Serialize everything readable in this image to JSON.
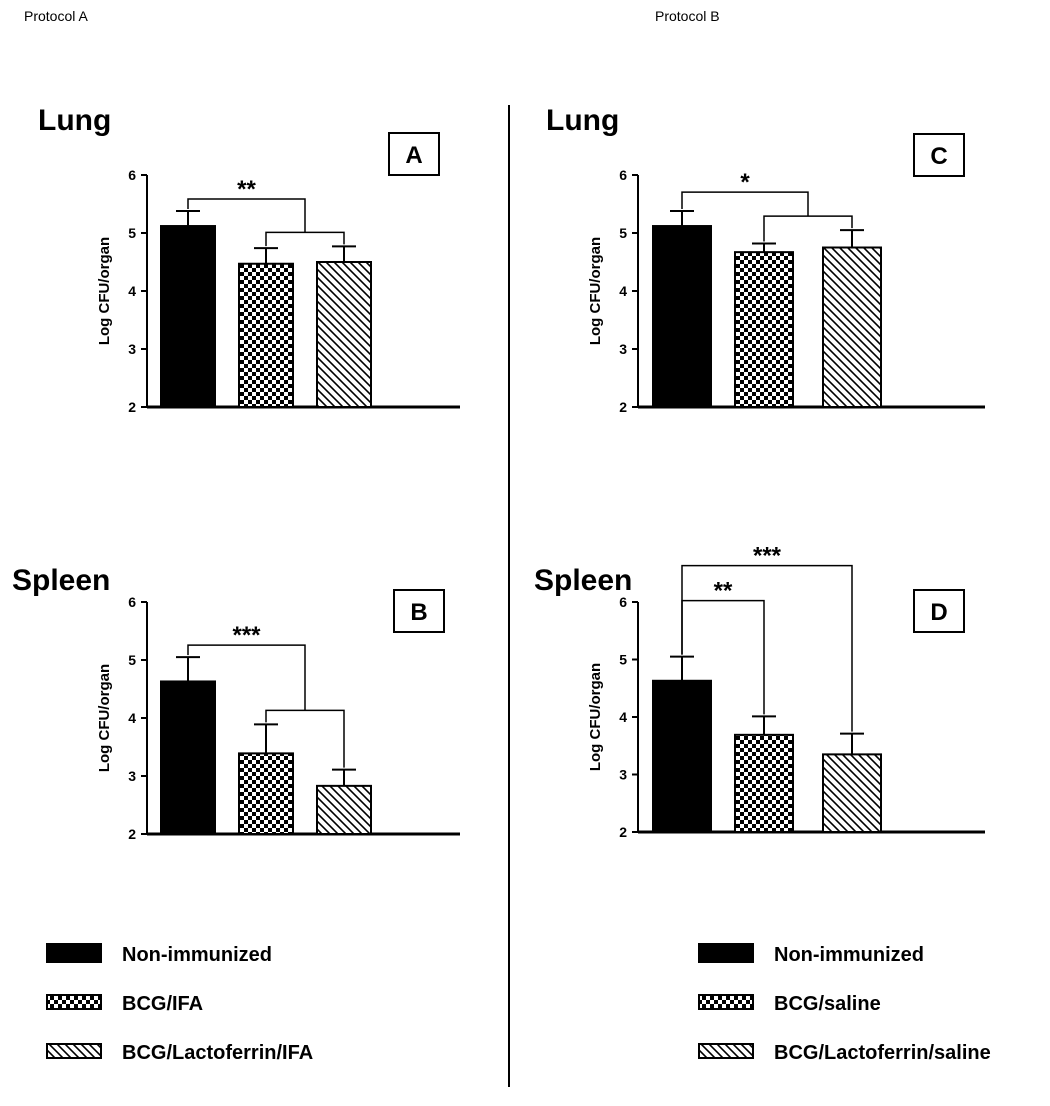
{
  "header": {
    "protocol_a": "Protocol A",
    "protocol_b": "Protocol B"
  },
  "colors": {
    "bar_solid": "#000000",
    "axis": "#000000",
    "background": "#ffffff"
  },
  "chart_data": [
    {
      "panel": "A",
      "type": "bar",
      "title": "Lung",
      "ylabel": "Log CFU/organ",
      "ylim": [
        2,
        6
      ],
      "yticks": [
        2,
        3,
        4,
        5,
        6
      ],
      "categories": [
        "Non-immunized",
        "BCG/IFA",
        "BCG/Lactoferrin/IFA"
      ],
      "patterns": [
        "solid",
        "checker",
        "hatch"
      ],
      "values": [
        5.12,
        4.47,
        4.5
      ],
      "errors": [
        0.26,
        0.27,
        0.27
      ],
      "significance": [
        {
          "label": "**",
          "type": "group",
          "from": 0,
          "to": [
            1,
            2
          ]
        }
      ]
    },
    {
      "panel": "B",
      "type": "bar",
      "title": "Spleen",
      "ylabel": "Log CFU/organ",
      "ylim": [
        2,
        6
      ],
      "yticks": [
        2,
        3,
        4,
        5,
        6
      ],
      "categories": [
        "Non-immunized",
        "BCG/IFA",
        "BCG/Lactoferrin/IFA"
      ],
      "patterns": [
        "solid",
        "checker",
        "hatch"
      ],
      "values": [
        4.63,
        3.39,
        2.83
      ],
      "errors": [
        0.42,
        0.5,
        0.28
      ],
      "significance": [
        {
          "label": "***",
          "type": "group",
          "from": 0,
          "to": [
            1,
            2
          ]
        }
      ]
    },
    {
      "panel": "C",
      "type": "bar",
      "title": "Lung",
      "ylabel": "Log CFU/organ",
      "ylim": [
        2,
        6
      ],
      "yticks": [
        2,
        3,
        4,
        5,
        6
      ],
      "categories": [
        "Non-immunized",
        "BCG/saline",
        "BCG/Lactoferrin/saline"
      ],
      "patterns": [
        "solid",
        "checker",
        "hatch"
      ],
      "values": [
        5.12,
        4.67,
        4.75
      ],
      "errors": [
        0.26,
        0.15,
        0.3
      ],
      "significance": [
        {
          "label": "*",
          "type": "group",
          "from": 0,
          "to": [
            1,
            2
          ]
        }
      ]
    },
    {
      "panel": "D",
      "type": "bar",
      "title": "Spleen",
      "ylabel": "Log CFU/organ",
      "ylim": [
        2,
        6
      ],
      "yticks": [
        2,
        3,
        4,
        5,
        6
      ],
      "categories": [
        "Non-immunized",
        "BCG/saline",
        "BCG/Lactoferrin/saline"
      ],
      "patterns": [
        "solid",
        "checker",
        "hatch"
      ],
      "values": [
        4.63,
        3.69,
        3.35
      ],
      "errors": [
        0.42,
        0.32,
        0.36
      ],
      "significance": [
        {
          "label": "**",
          "type": "pair",
          "from": 0,
          "to": 1
        },
        {
          "label": "***",
          "type": "pair",
          "from": 0,
          "to": 2
        }
      ]
    }
  ],
  "legends": {
    "protocol_a": [
      {
        "label": "Non-immunized",
        "pattern": "solid"
      },
      {
        "label": "BCG/IFA",
        "pattern": "checker"
      },
      {
        "label": "BCG/Lactoferrin/IFA",
        "pattern": "hatch"
      }
    ],
    "protocol_b": [
      {
        "label": "Non-immunized",
        "pattern": "solid"
      },
      {
        "label": "BCG/saline",
        "pattern": "checker"
      },
      {
        "label": "BCG/Lactoferrin/saline",
        "pattern": "hatch"
      }
    ]
  }
}
